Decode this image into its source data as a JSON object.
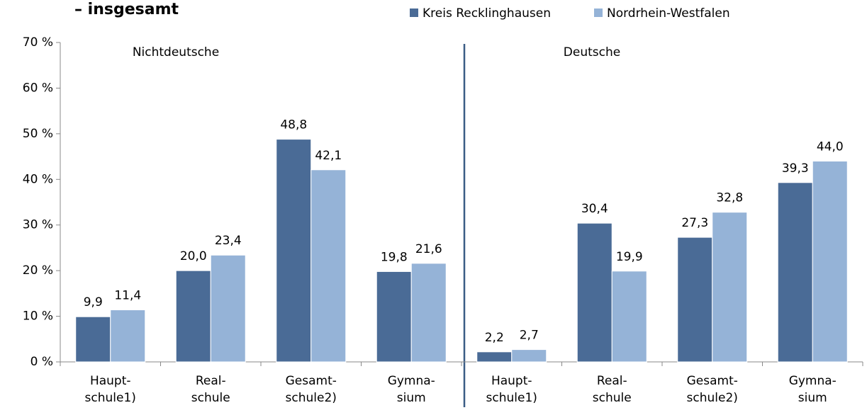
{
  "chart_data": {
    "type": "bar",
    "title": "– insgesamt",
    "annotations": [
      "Nichtdeutsche",
      "Deutsche"
    ],
    "categories": [
      [
        "Haupt-",
        "schule1)"
      ],
      [
        "Real-",
        "schule"
      ],
      [
        "Gesamt-",
        "schule2)"
      ],
      [
        "Gymna-",
        "sium"
      ],
      [
        "Haupt-",
        "schule1)"
      ],
      [
        "Real-",
        "schule"
      ],
      [
        "Gesamt-",
        "schule2)"
      ],
      [
        "Gymna-",
        "sium"
      ]
    ],
    "series": [
      {
        "name": "Kreis Recklinghausen",
        "color": "#4a6b96",
        "values": [
          9.9,
          20.0,
          48.8,
          19.8,
          2.2,
          30.4,
          27.3,
          39.3
        ],
        "value_labels": [
          "9,9",
          "20,0",
          "48,8",
          "19,8",
          "2,2",
          "30,4",
          "27,3",
          "39,3"
        ]
      },
      {
        "name": "Nordrhein-Westfalen",
        "color": "#95b3d7",
        "values": [
          11.4,
          23.4,
          42.1,
          21.6,
          2.7,
          19.9,
          32.8,
          44.0
        ],
        "value_labels": [
          "11,4",
          "23,4",
          "42,1",
          "21,6",
          "2,7",
          "19,9",
          "32,8",
          "44,0"
        ]
      }
    ],
    "ylim": [
      0,
      70
    ],
    "yticks": [
      {
        "value": 0,
        "label": "0 %"
      },
      {
        "value": 10,
        "label": "10 %"
      },
      {
        "value": 20,
        "label": "20 %"
      },
      {
        "value": 30,
        "label": "30 %"
      },
      {
        "value": 40,
        "label": "40 %"
      },
      {
        "value": 50,
        "label": "50 %"
      },
      {
        "value": 60,
        "label": "60 %"
      },
      {
        "value": 70,
        "label": "70 %"
      }
    ],
    "legend": "top"
  }
}
